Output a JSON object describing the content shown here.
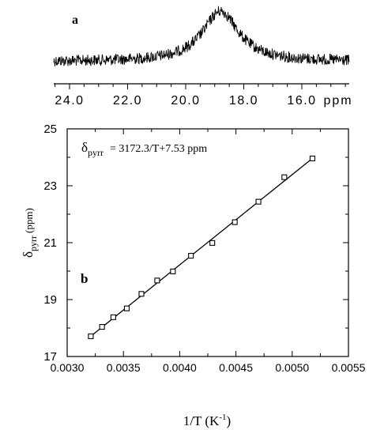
{
  "chart_data": [
    {
      "panel_label": "a",
      "type": "line",
      "description_type": "spectrum",
      "x_unit": "ppm",
      "x_axis_direction": "decreasing",
      "xlim": [
        25.0,
        14.0
      ],
      "x_ticks": [
        24.0,
        22.0,
        20.0,
        18.0,
        16.0
      ],
      "x_tick_labels": [
        "24.0",
        "22.0",
        "20.0",
        "18.0",
        "16.0"
      ],
      "peak": {
        "center": 18.8,
        "width": 0.75
      },
      "noise_level": 0.18
    },
    {
      "panel_label": "b",
      "type": "scatter",
      "equation_symbol": "δ",
      "equation_subscript": "pyrr",
      "equation_rest": "=  3172.3/T+7.53  ppm",
      "ylabel_symbol": "δ",
      "ylabel_subscript": "pyrr",
      "ylabel_unit": "(ppm)",
      "xlabel_main": "1/T  (K",
      "xlabel_exp": "-1",
      "xlabel_close": ")",
      "xlim": [
        0.003,
        0.0055
      ],
      "ylim": [
        17,
        25
      ],
      "x_ticks": [
        0.003,
        0.0035,
        0.004,
        0.0045,
        0.005,
        0.0055
      ],
      "x_tick_labels": [
        "0.0030",
        "0.0035",
        "0.0040",
        "0.0045",
        "0.0050",
        "0.0055"
      ],
      "y_ticks": [
        17,
        19,
        21,
        23,
        25
      ],
      "y_tick_labels": [
        "17",
        "19",
        "21",
        "23",
        "25"
      ],
      "fit": {
        "slope": 3172.3,
        "intercept": 7.53
      },
      "points": [
        {
          "x": 0.00321,
          "y": 17.71
        },
        {
          "x": 0.00331,
          "y": 18.04
        },
        {
          "x": 0.00341,
          "y": 18.38
        },
        {
          "x": 0.00353,
          "y": 18.69
        },
        {
          "x": 0.00366,
          "y": 19.2
        },
        {
          "x": 0.0038,
          "y": 19.67
        },
        {
          "x": 0.00394,
          "y": 19.99
        },
        {
          "x": 0.0041,
          "y": 20.54
        },
        {
          "x": 0.00429,
          "y": 20.99
        },
        {
          "x": 0.00449,
          "y": 21.72
        },
        {
          "x": 0.0047,
          "y": 22.44
        },
        {
          "x": 0.00493,
          "y": 23.3
        },
        {
          "x": 0.00518,
          "y": 23.96
        }
      ],
      "grid": false,
      "marker": "open-square"
    }
  ]
}
